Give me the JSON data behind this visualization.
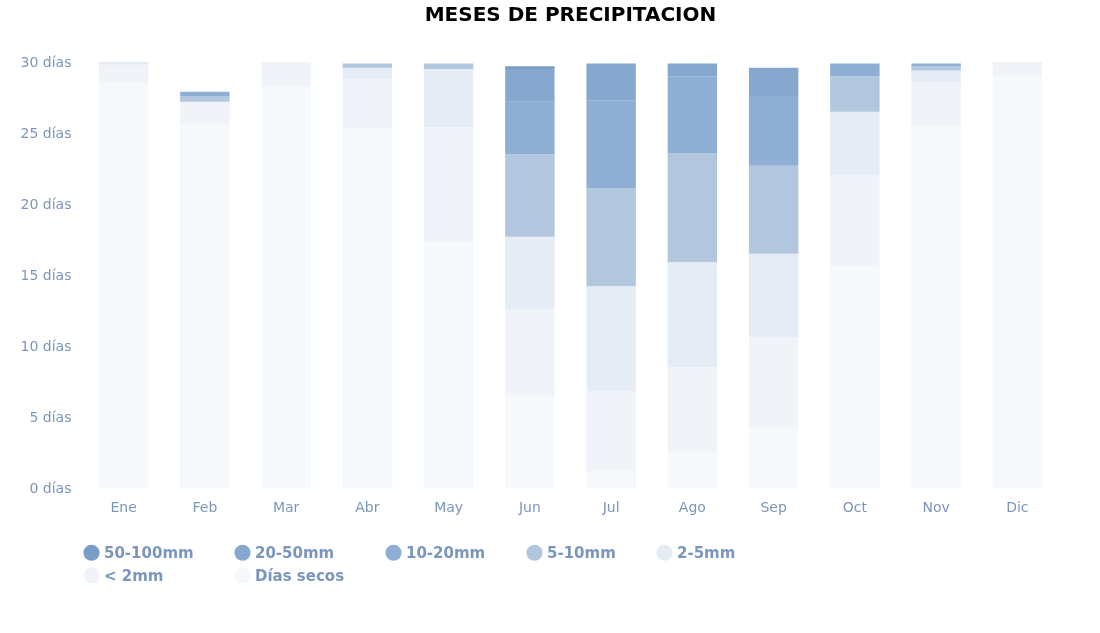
{
  "chart_data": {
    "type": "bar",
    "title": "MESES DE PRECIPITACION",
    "stacked": true,
    "legend": "bottom",
    "categories": [
      "Ene",
      "Feb",
      "Mar",
      "Abr",
      "May",
      "Jun",
      "Jul",
      "Ago",
      "Sep",
      "Oct",
      "Nov",
      "Dic"
    ],
    "ylim": [
      0,
      30
    ],
    "yticks": [
      {
        "value": 0,
        "label": "0 días"
      },
      {
        "value": 5,
        "label": "5 días"
      },
      {
        "value": 10,
        "label": "10 días"
      },
      {
        "value": 15,
        "label": "15 días"
      },
      {
        "value": 20,
        "label": "20 días"
      },
      {
        "value": 25,
        "label": "25 días"
      },
      {
        "value": 30,
        "label": "30 días"
      }
    ],
    "series": [
      {
        "name": "Días secos",
        "color": "#f6f9fc",
        "values": [
          28.6,
          25.6,
          28.3,
          25.3,
          17.4,
          6.5,
          1.2,
          2.5,
          4.2,
          15.7,
          25.4,
          29.0
        ]
      },
      {
        "name": "< 2mm",
        "color": "#f0f4f9",
        "values": [
          1.2,
          1.6,
          1.7,
          3.5,
          8.0,
          6.1,
          5.6,
          6.0,
          6.4,
          6.3,
          3.2,
          1.0
        ]
      },
      {
        "name": "2-5mm",
        "color": "#e6ecf5",
        "values": [
          0.2,
          null,
          null,
          0.8,
          4.1,
          5.1,
          7.4,
          7.4,
          5.9,
          4.5,
          0.8,
          null
        ]
      },
      {
        "name": "5-10mm",
        "color": "#b2c7de",
        "values": [
          null,
          0.4,
          null,
          0.3,
          0.4,
          5.8,
          6.9,
          7.7,
          6.2,
          2.5,
          0.3,
          null
        ]
      },
      {
        "name": "10-20mm",
        "color": "#8eafd3",
        "values": [
          null,
          0.3,
          null,
          null,
          null,
          3.7,
          6.2,
          5.4,
          4.9,
          0.9,
          0.2,
          null
        ]
      },
      {
        "name": "20-50mm",
        "color": "#86a8ce",
        "values": [
          null,
          null,
          null,
          null,
          null,
          2.3,
          2.6,
          0.9,
          2.0,
          null,
          null,
          null
        ]
      },
      {
        "name": "50-100mm",
        "color": "#799dc6",
        "values": [
          null,
          null,
          null,
          null,
          null,
          0.2,
          null,
          null,
          null,
          null,
          null,
          null
        ]
      }
    ]
  }
}
